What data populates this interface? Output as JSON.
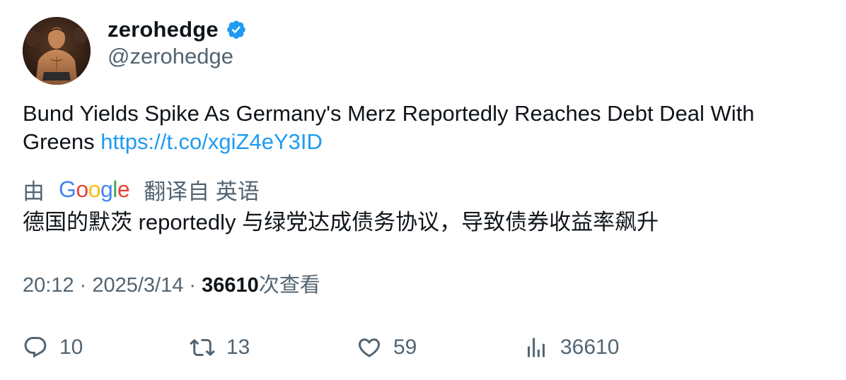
{
  "author": {
    "display_name": "zerohedge",
    "handle": "@zerohedge",
    "verified": true,
    "verified_color": "#1d9bf0"
  },
  "tweet": {
    "text": "Bund Yields Spike As Germany's Merz Reportedly Reaches Debt Deal With Greens ",
    "link": "https://t.co/xgiZ4eY3ID",
    "link_color": "#1d9bf0"
  },
  "translation": {
    "prefix": "由",
    "provider": "Google",
    "suffix": "翻译自 英语",
    "text": "德国的默茨 reportedly 与绿党达成债务协议，导致债券收益率飙升"
  },
  "meta": {
    "time": "20:12",
    "separator1": " · ",
    "date": "2025/3/14",
    "separator2": " · ",
    "views_count": "36610",
    "views_label": "次查看"
  },
  "actions": {
    "reply": {
      "icon": "reply-icon",
      "count": "10"
    },
    "retweet": {
      "icon": "retweet-icon",
      "count": "13"
    },
    "like": {
      "icon": "heart-icon",
      "count": "59"
    },
    "views": {
      "icon": "analytics-icon",
      "count": "36610"
    }
  },
  "colors": {
    "text_primary": "#0f1419",
    "text_secondary": "#536471",
    "accent": "#1d9bf0"
  }
}
